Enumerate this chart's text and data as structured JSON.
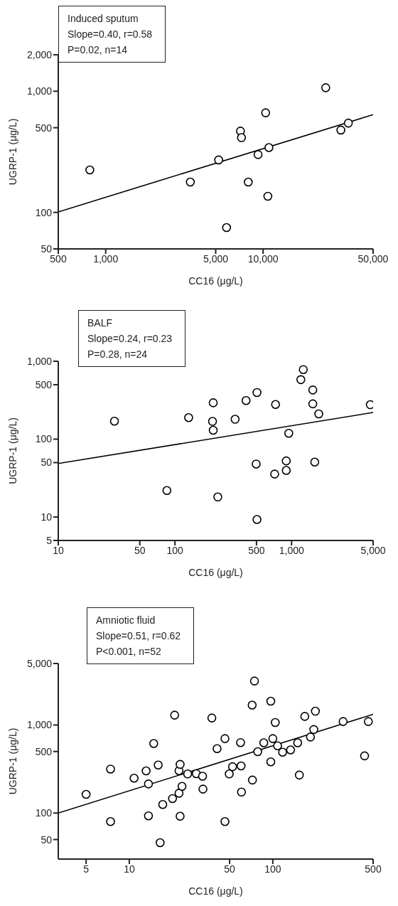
{
  "chart_data": [
    {
      "type": "scatter",
      "xlabel": "CC16 (μg/L)",
      "ylabel": "UGRP-1 (μg/L)",
      "log": "xy",
      "marker": "circle",
      "annotations": [
        "Induced sputum",
        "Slope=0.40, r=0.58",
        "P=0.02, n=14"
      ],
      "xlim": [
        500,
        50000
      ],
      "xticks": [
        500,
        {
          "value": 1000,
          "label": "1,000"
        },
        {
          "value": 5000,
          "label": "5,000"
        },
        {
          "value": 10000,
          "label": "10,000"
        },
        {
          "value": 50000,
          "label": "50,000"
        }
      ],
      "ylim": [
        50,
        2000
      ],
      "yticks": [
        50,
        100,
        500,
        {
          "value": 1000,
          "label": "1,000"
        },
        {
          "value": 2000,
          "label": "2,000"
        }
      ],
      "series": [
        {
          "color": "#000000",
          "x": [
            793,
            3450,
            5220,
            5860,
            7180,
            7290,
            8050,
            9290,
            10380,
            10890,
            10720,
            25000,
            31200,
            34800
          ],
          "values": [
            224,
            178,
            271,
            75,
            469,
            414,
            178,
            300,
            664,
            343,
            136,
            1069,
            478,
            546
          ]
        },
        {
          "type": "line",
          "marker": "none",
          "color": "#000000",
          "x": [
            500,
            50000
          ],
          "values": [
            101,
            641
          ]
        }
      ]
    },
    {
      "type": "scatter",
      "xlabel": "CC16 (μg/L)",
      "ylabel": "UGRP-1 (μg/L)",
      "log": "xy",
      "marker": "circle",
      "annotations": [
        "BALF",
        "Slope=0.24, r=0.23",
        "P=0.28, n=24"
      ],
      "xlim": [
        10,
        5000
      ],
      "xticks": [
        10,
        50,
        100,
        500,
        {
          "value": 1000,
          "label": "1,000"
        },
        {
          "value": 5000,
          "label": "5,000"
        }
      ],
      "ylim": [
        5,
        1000
      ],
      "yticks": [
        5,
        10,
        50,
        100,
        500,
        {
          "value": 1000,
          "label": "1,000"
        }
      ],
      "series": [
        {
          "color": "#000000",
          "x": [
            30.3,
            85.3,
            131,
            213,
            210,
            213,
            233,
            328,
            407,
            505,
            497,
            505,
            729,
            716,
            900,
            900,
            946,
            1200,
            1260,
            1520,
            1520,
            1580,
            1710,
            4730
          ],
          "values": [
            170,
            21.9,
            189,
            293,
            169,
            130,
            18.1,
            180,
            313,
            397,
            48,
            9.3,
            279,
            35.6,
            52.5,
            39.7,
            119,
            581,
            782,
            428,
            284,
            50.8,
            211,
            277
          ]
        },
        {
          "type": "line",
          "marker": "none",
          "color": "#000000",
          "x": [
            10,
            5000
          ],
          "values": [
            48.6,
            220
          ]
        }
      ]
    },
    {
      "type": "scatter",
      "xlabel": "CC16 (μg/L)",
      "ylabel": "UGRP-1 (μg/L)",
      "log": "xy",
      "marker": "circle",
      "annotations": [
        "Amniotic fluid",
        "Slope=0.51, r=0.62",
        "P<0.001, n=52"
      ],
      "xlim": [
        3.2,
        500
      ],
      "xticks": [
        5,
        10,
        50,
        100,
        500
      ],
      "ylim": [
        30,
        5000
      ],
      "yticks": [
        50,
        100,
        500,
        {
          "value": 1000,
          "label": "1,000"
        },
        {
          "value": 5000,
          "label": "5,000"
        }
      ],
      "series": [
        {
          "color": "#000000",
          "x": [
            5.0,
            7.4,
            7.4,
            10.8,
            13.1,
            13.6,
            13.6,
            14.8,
            15.9,
            17.1,
            16.4,
            20.0,
            20.7,
            22.2,
            22.2,
            22.6,
            23.3,
            22.6,
            25.5,
            29.3,
            32.4,
            32.6,
            37.6,
            40.9,
            46.4,
            46.4,
            49.7,
            52.4,
            59.6,
            60.1,
            60.5,
            71.8,
            72.1,
            74.5,
            78.5,
            86.5,
            96.8,
            96.8,
            100,
            104,
            108,
            117,
            133,
            149,
            153,
            167,
            183,
            193,
            198,
            309,
            436,
            463
          ],
          "values": [
            163,
            316,
            80,
            249,
            301,
            214,
            93,
            617,
            351,
            125,
            46,
            146,
            1294,
            168,
            303,
            357,
            201,
            92,
            278,
            280,
            262,
            187,
            1202,
            539,
            701,
            80,
            278,
            336,
            632,
            343,
            173,
            1683,
            237,
            3162,
            498,
            628,
            1866,
            382,
            701,
            1069,
            580,
            491,
            522,
            628,
            270,
            1253,
            731,
            889,
            1436,
            1096,
            446,
            1096
          ]
        },
        {
          "type": "line",
          "marker": "none",
          "color": "#000000",
          "x": [
            3.2,
            500
          ],
          "values": [
            100,
            1324
          ]
        }
      ]
    }
  ]
}
